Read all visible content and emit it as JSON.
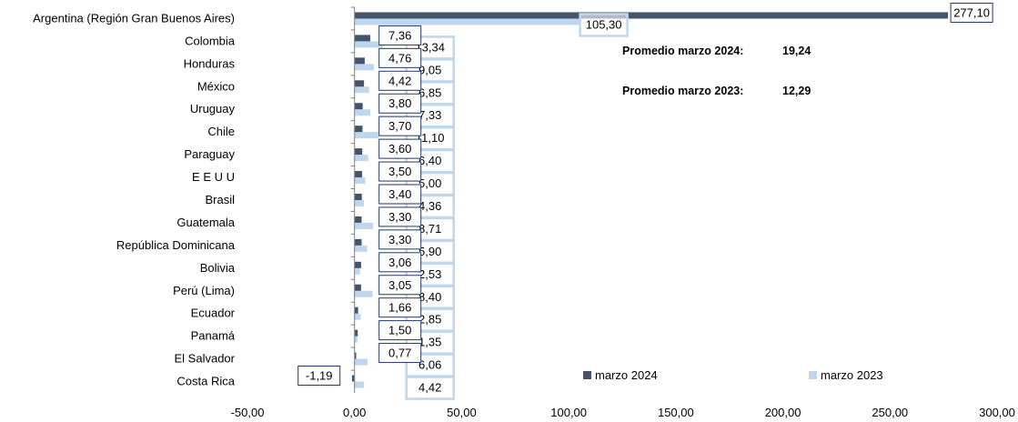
{
  "chart_data": {
    "type": "bar",
    "orientation": "horizontal",
    "categories": [
      "Argentina (Región Gran Buenos Aires)",
      "Colombia",
      "Honduras",
      "México",
      "Uruguay",
      "Chile",
      "Paraguay",
      "E E U U",
      "Brasil",
      "Guatemala",
      "República Dominicana",
      "Bolivia",
      "Perú (Lima)",
      "Ecuador",
      "Panamá",
      "El Salvador",
      "Costa Rica"
    ],
    "series": [
      {
        "name": "marzo 2024",
        "color": "#44546a",
        "values": [
          277.1,
          7.36,
          4.76,
          4.42,
          3.8,
          3.7,
          3.6,
          3.5,
          3.4,
          3.3,
          3.3,
          3.06,
          3.05,
          1.66,
          1.5,
          0.77,
          -1.19
        ],
        "labels": [
          "277,10",
          "7,36",
          "4,76",
          "4,42",
          "3,80",
          "3,70",
          "3,60",
          "3,50",
          "3,40",
          "3,30",
          "3,30",
          "3,06",
          "3,05",
          "1,66",
          "1,50",
          "0,77",
          "-1,19"
        ]
      },
      {
        "name": "marzo 2023",
        "color": "#bdd7ee",
        "values": [
          105.3,
          13.34,
          9.05,
          6.85,
          7.33,
          11.1,
          6.4,
          5.0,
          4.36,
          8.71,
          5.9,
          2.53,
          8.4,
          2.85,
          1.35,
          6.06,
          4.42
        ],
        "labels": [
          "105,30",
          "13,34",
          "9,05",
          "6,85",
          "7,33",
          "11,10",
          "6,40",
          "5,00",
          "4,36",
          "8,71",
          "5,90",
          "2,53",
          "8,40",
          "2,85",
          "1,35",
          "6,06",
          "4,42"
        ]
      }
    ],
    "xlim": [
      -50,
      300
    ],
    "xticks": [
      "-50,00",
      "0,00",
      "50,00",
      "100,00",
      "150,00",
      "200,00",
      "250,00",
      "300,00"
    ],
    "annotations": [
      {
        "label": "Promedio marzo 2024:",
        "value": "19,24"
      },
      {
        "label": "Promedio marzo 2023:",
        "value": "12,29"
      }
    ],
    "legend": {
      "position": "bottom-right",
      "items": [
        "marzo 2024",
        "marzo 2023"
      ]
    },
    "grid": false
  }
}
